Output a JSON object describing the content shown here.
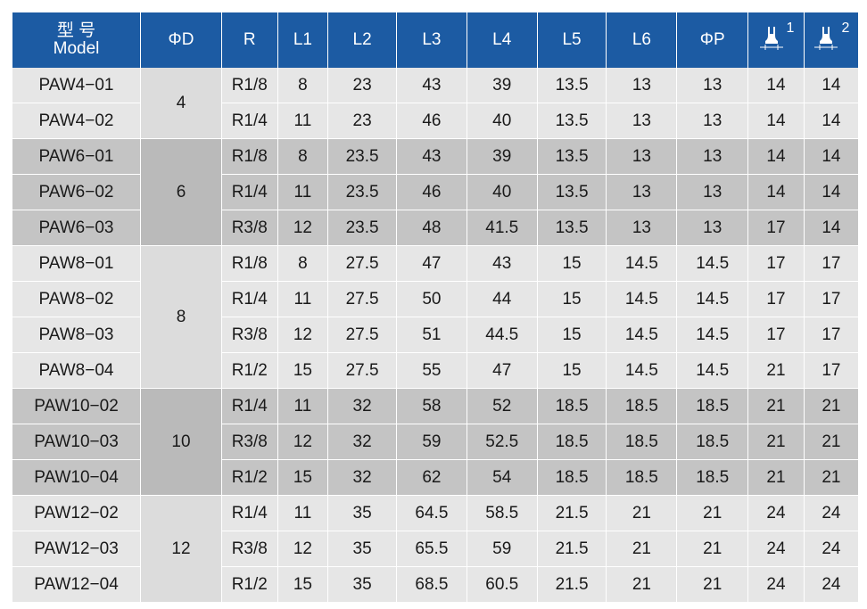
{
  "header": {
    "model_cn": "型 号",
    "model_en": "Model",
    "phi_d": "ΦD",
    "r": "R",
    "l1": "L1",
    "l2": "L2",
    "l3": "L3",
    "l4": "L4",
    "l5": "L5",
    "l6": "L6",
    "phi_p": "ΦP",
    "wrench1": "1",
    "wrench2": "2"
  },
  "groups": [
    {
      "phi_d": "4",
      "shade": 0,
      "rows": [
        [
          "PAW4−01",
          "R1/8",
          "8",
          "23",
          "43",
          "39",
          "13.5",
          "13",
          "13",
          "14",
          "14"
        ],
        [
          "PAW4−02",
          "R1/4",
          "11",
          "23",
          "46",
          "40",
          "13.5",
          "13",
          "13",
          "14",
          "14"
        ]
      ]
    },
    {
      "phi_d": "6",
      "shade": 1,
      "rows": [
        [
          "PAW6−01",
          "R1/8",
          "8",
          "23.5",
          "43",
          "39",
          "13.5",
          "13",
          "13",
          "14",
          "14"
        ],
        [
          "PAW6−02",
          "R1/4",
          "11",
          "23.5",
          "46",
          "40",
          "13.5",
          "13",
          "13",
          "14",
          "14"
        ],
        [
          "PAW6−03",
          "R3/8",
          "12",
          "23.5",
          "48",
          "41.5",
          "13.5",
          "13",
          "13",
          "17",
          "14"
        ]
      ]
    },
    {
      "phi_d": "8",
      "shade": 0,
      "rows": [
        [
          "PAW8−01",
          "R1/8",
          "8",
          "27.5",
          "47",
          "43",
          "15",
          "14.5",
          "14.5",
          "17",
          "17"
        ],
        [
          "PAW8−02",
          "R1/4",
          "11",
          "27.5",
          "50",
          "44",
          "15",
          "14.5",
          "14.5",
          "17",
          "17"
        ],
        [
          "PAW8−03",
          "R3/8",
          "12",
          "27.5",
          "51",
          "44.5",
          "15",
          "14.5",
          "14.5",
          "17",
          "17"
        ],
        [
          "PAW8−04",
          "R1/2",
          "15",
          "27.5",
          "55",
          "47",
          "15",
          "14.5",
          "14.5",
          "21",
          "17"
        ]
      ]
    },
    {
      "phi_d": "10",
      "shade": 1,
      "rows": [
        [
          "PAW10−02",
          "R1/4",
          "11",
          "32",
          "58",
          "52",
          "18.5",
          "18.5",
          "18.5",
          "21",
          "21"
        ],
        [
          "PAW10−03",
          "R3/8",
          "12",
          "32",
          "59",
          "52.5",
          "18.5",
          "18.5",
          "18.5",
          "21",
          "21"
        ],
        [
          "PAW10−04",
          "R1/2",
          "15",
          "32",
          "62",
          "54",
          "18.5",
          "18.5",
          "18.5",
          "21",
          "21"
        ]
      ]
    },
    {
      "phi_d": "12",
      "shade": 0,
      "rows": [
        [
          "PAW12−02",
          "R1/4",
          "11",
          "35",
          "64.5",
          "58.5",
          "21.5",
          "21",
          "21",
          "24",
          "24"
        ],
        [
          "PAW12−03",
          "R3/8",
          "12",
          "35",
          "65.5",
          "59",
          "21.5",
          "21",
          "21",
          "24",
          "24"
        ],
        [
          "PAW12−04",
          "R1/2",
          "15",
          "35",
          "68.5",
          "60.5",
          "21.5",
          "21",
          "21",
          "24",
          "24"
        ]
      ]
    }
  ]
}
